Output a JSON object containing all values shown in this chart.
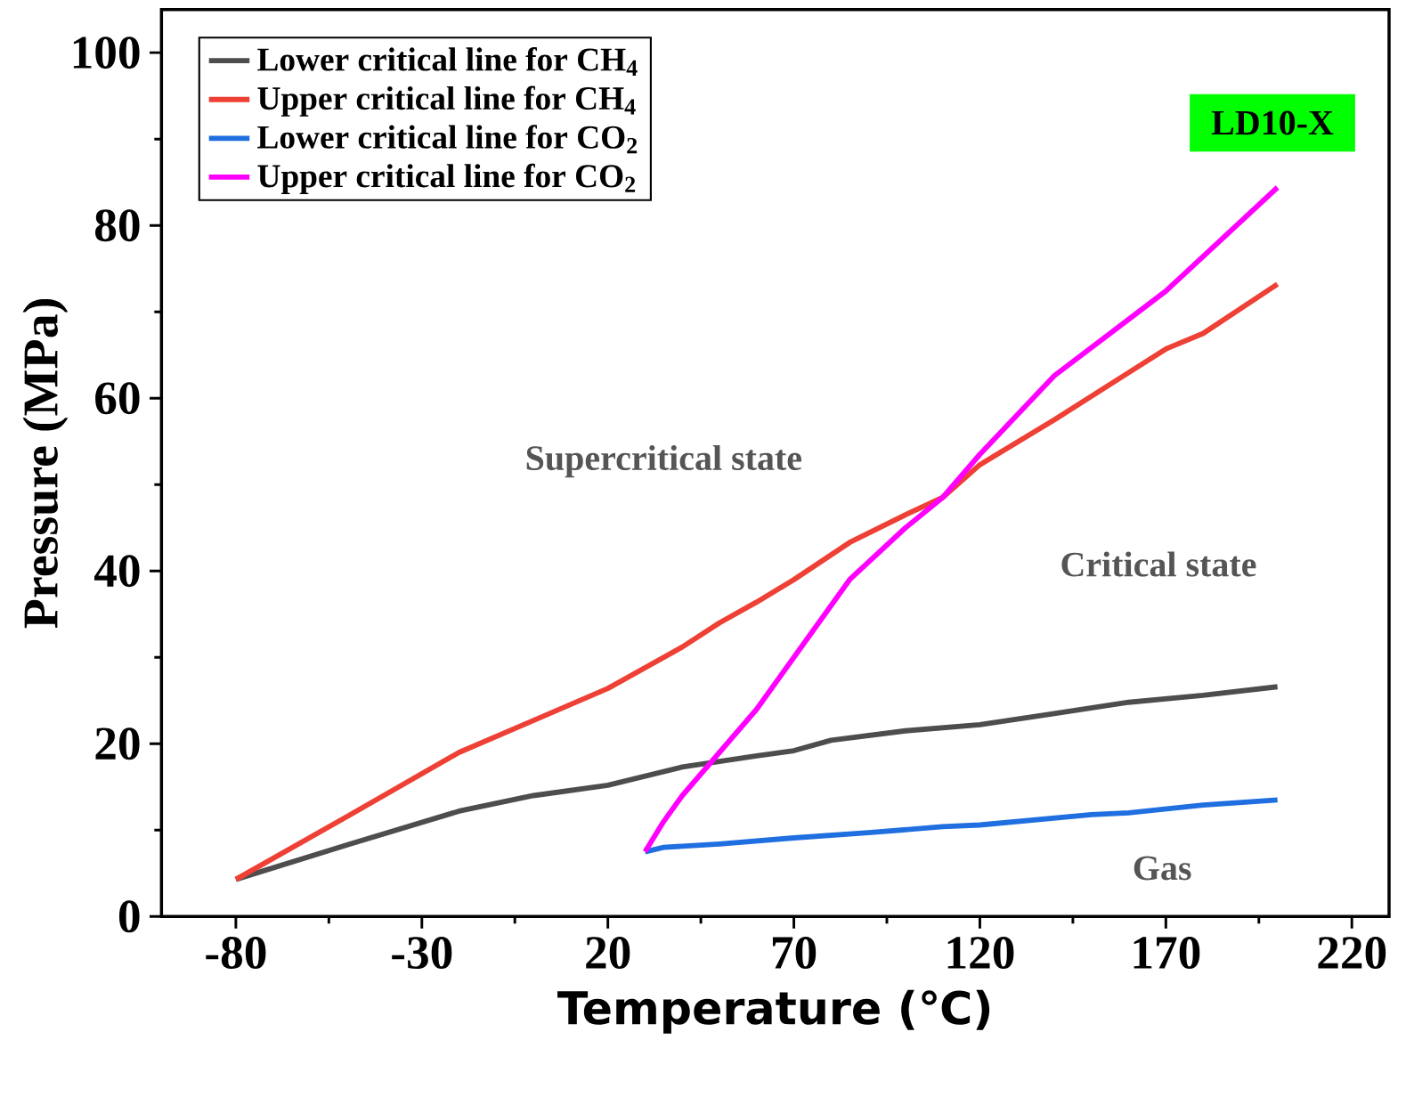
{
  "chart_data": {
    "type": "line",
    "xlabel": "Temperature (℃)",
    "ylabel": "Pressure (MPa)",
    "xlim": [
      -100,
      230
    ],
    "ylim": [
      0,
      105
    ],
    "xticks": [
      -80,
      -30,
      20,
      70,
      120,
      170,
      220
    ],
    "yticks": [
      0,
      20,
      40,
      60,
      80,
      100
    ],
    "legend": "top left",
    "line_style": "solid",
    "marker": "none",
    "series": [
      {
        "name": "Lower critical line for CH$_{4}$",
        "color": "#4d4d4d",
        "x": [
          -80,
          -50,
          -20,
          0,
          20,
          40,
          60,
          70,
          80,
          100,
          120,
          140,
          160,
          180,
          200
        ],
        "values": [
          4.3,
          8.3,
          12.2,
          14.0,
          15.2,
          17.3,
          18.6,
          19.2,
          20.4,
          21.5,
          22.2,
          23.5,
          24.8,
          25.6,
          26.6
        ]
      },
      {
        "name": "Upper critical line for CH$_{4}$",
        "color": "#ee4035",
        "x": [
          -80,
          -50,
          -20,
          0,
          20,
          40,
          50,
          60,
          70,
          85,
          100,
          110,
          120,
          140,
          170,
          180,
          200
        ],
        "values": [
          4.3,
          11.6,
          19.0,
          22.7,
          26.4,
          31.2,
          34.0,
          36.4,
          39.0,
          43.3,
          46.5,
          48.5,
          52.3,
          57.5,
          65.7,
          67.5,
          73.2
        ]
      },
      {
        "name": "Lower critical line for CO$_{2}$",
        "color": "#1f6fe0",
        "x": [
          30,
          35,
          50,
          70,
          90,
          110,
          120,
          150,
          160,
          180,
          200
        ],
        "values": [
          7.5,
          8.0,
          8.4,
          9.1,
          9.7,
          10.4,
          10.6,
          11.8,
          12.0,
          12.9,
          13.5
        ]
      },
      {
        "name": "Upper critical line for CO$_{2}$",
        "color": "#ff00ff",
        "x": [
          30,
          35,
          40,
          50,
          60,
          70,
          85,
          100,
          110,
          120,
          140,
          170,
          200
        ],
        "values": [
          7.5,
          11.0,
          14.0,
          19.0,
          24.0,
          30.0,
          39.0,
          45.0,
          48.5,
          53.5,
          62.6,
          72.4,
          84.4
        ]
      }
    ],
    "annotations": [
      "LD10-X",
      "Supercritical state",
      "Critical state",
      "Gas"
    ]
  }
}
